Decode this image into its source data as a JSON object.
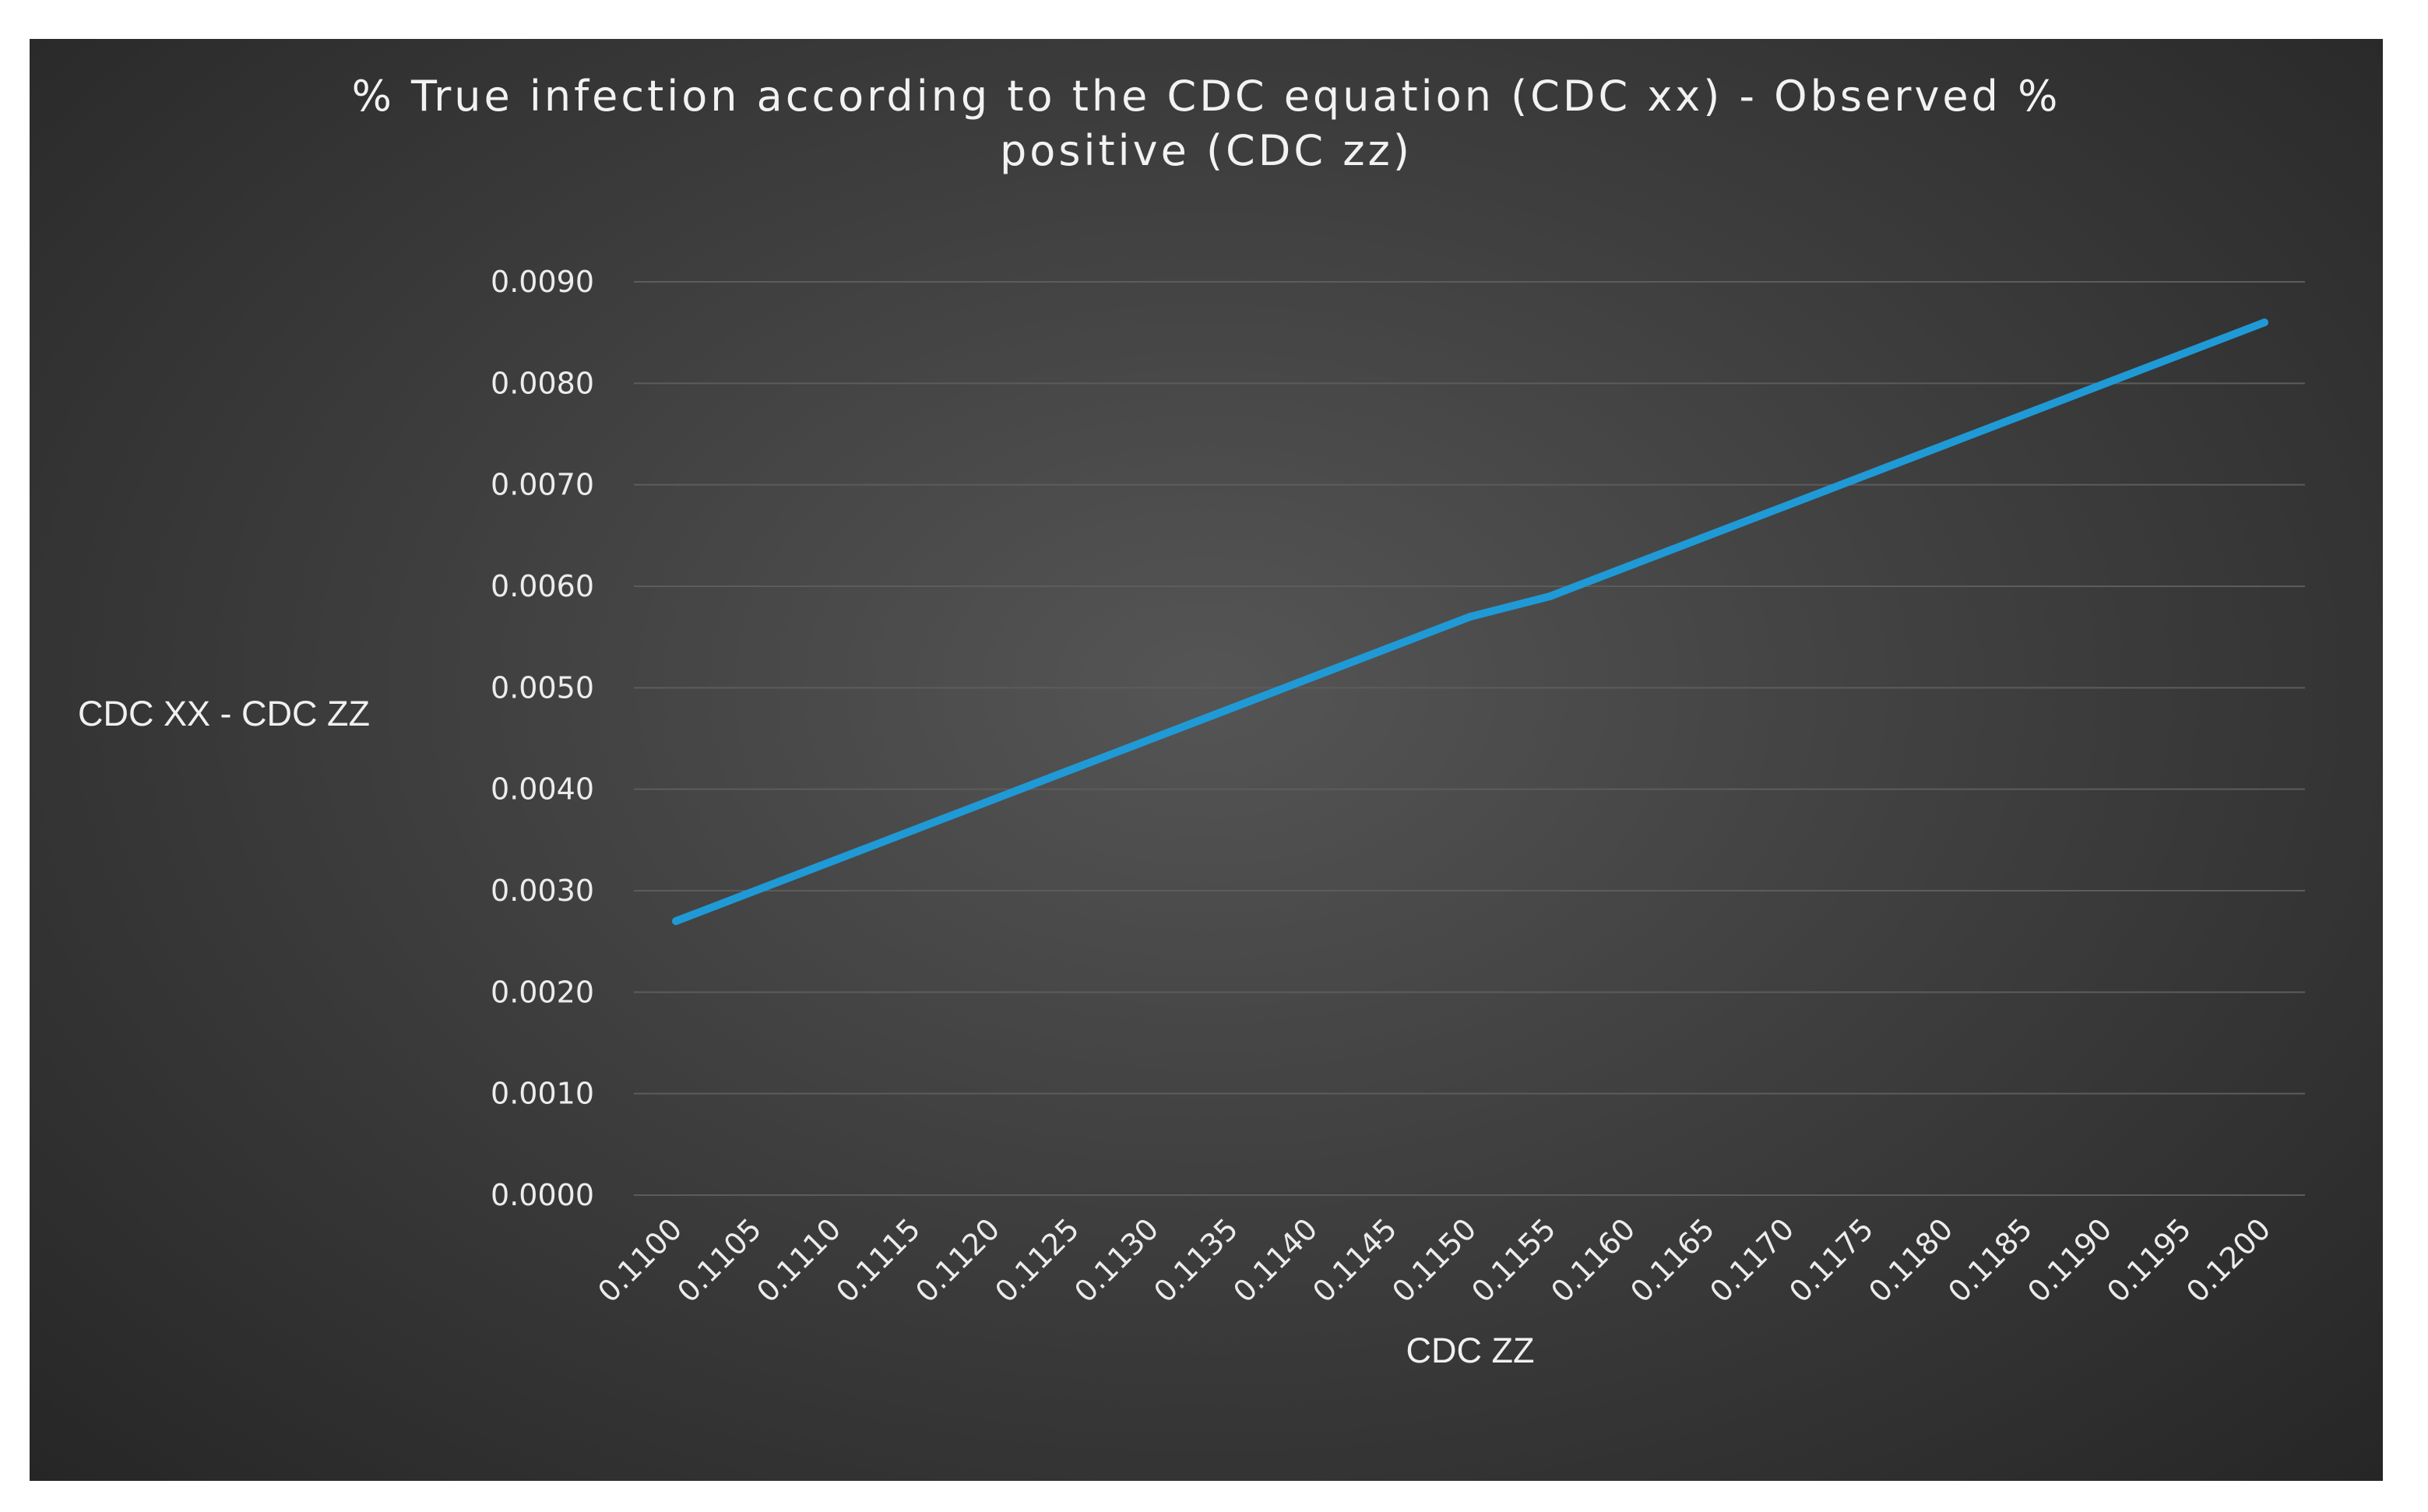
{
  "chart_data": {
    "type": "line",
    "title_lines": [
      "% True infection according to the CDC equation (CDC xx) - Observed %",
      "positive (CDC zz)"
    ],
    "xlabel": "CDC ZZ",
    "ylabel": "CDC XX - CDC ZZ",
    "categories": [
      "0.1100",
      "0.1105",
      "0.1110",
      "0.1115",
      "0.1120",
      "0.1125",
      "0.1130",
      "0.1135",
      "0.1140",
      "0.1145",
      "0.1150",
      "0.1155",
      "0.1160",
      "0.1165",
      "0.1170",
      "0.1175",
      "0.1180",
      "0.1185",
      "0.1190",
      "0.1195",
      "0.1200"
    ],
    "yticks": [
      "0.0000",
      "0.0010",
      "0.0020",
      "0.0030",
      "0.0040",
      "0.0050",
      "0.0060",
      "0.0070",
      "0.0080",
      "0.0090"
    ],
    "ylim": [
      0,
      0.009
    ],
    "grid": true,
    "legend": "none",
    "series": [
      {
        "color": "#1f9ad6",
        "values": [
          0.0027,
          0.003,
          0.0033,
          0.0036,
          0.0039,
          0.0042,
          0.0045,
          0.0048,
          0.0051,
          0.0054,
          0.0057,
          0.0059,
          0.0062,
          0.0065,
          0.0068,
          0.0071,
          0.0074,
          0.0077,
          0.008,
          0.0083,
          0.0086
        ]
      }
    ]
  }
}
